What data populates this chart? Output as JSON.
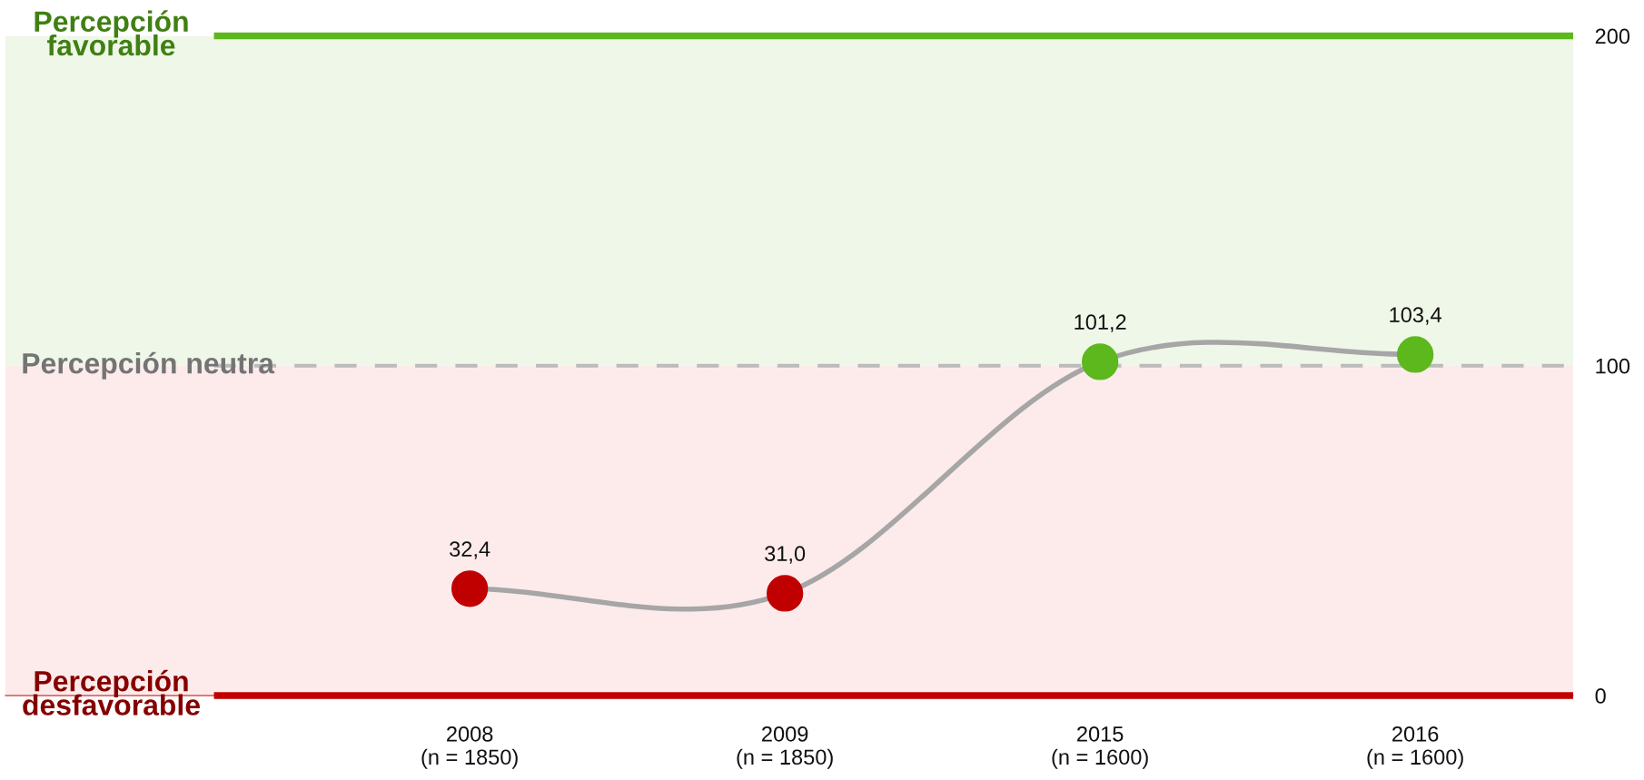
{
  "chart_data": {
    "type": "line",
    "categories": [
      "2008\n(n = 1850)",
      "2009\n(n = 1850)",
      "2015\n(n = 1600)",
      "2016\n(n = 1600)"
    ],
    "series": [
      {
        "color": "#a6a6a6",
        "colors": [
          "#c00000",
          "#c00000",
          "#5cb81c",
          "#5cb81c"
        ],
        "values": [
          32.4,
          31.0,
          101.2,
          103.4
        ],
        "value_labels": [
          "32,4",
          "31,0",
          "101,2",
          "103,4"
        ]
      }
    ],
    "ylim": [
      0,
      200
    ],
    "yticks": [
      0,
      100,
      200
    ],
    "marker": "circle",
    "line_style": "solid",
    "grid": false,
    "legend": false,
    "ref_lines": [
      {
        "axis": "y",
        "value": 200,
        "label": "Percepción\nfavorable",
        "color": "#5cb81c",
        "line_style": "solid"
      },
      {
        "axis": "y",
        "value": 100,
        "label": "Percepción neutra",
        "color": "#bbbbbb",
        "line_style": "dashed"
      },
      {
        "axis": "y",
        "value": 0,
        "label": "Percepción\ndesfavorable",
        "color": "#c00000",
        "line_style": "solid"
      }
    ],
    "bands": [
      {
        "axis": "y",
        "from": 100,
        "to": 200,
        "color": "#eff7e8"
      },
      {
        "axis": "y",
        "from": 0,
        "to": 100,
        "color": "#fdebeb"
      }
    ]
  }
}
